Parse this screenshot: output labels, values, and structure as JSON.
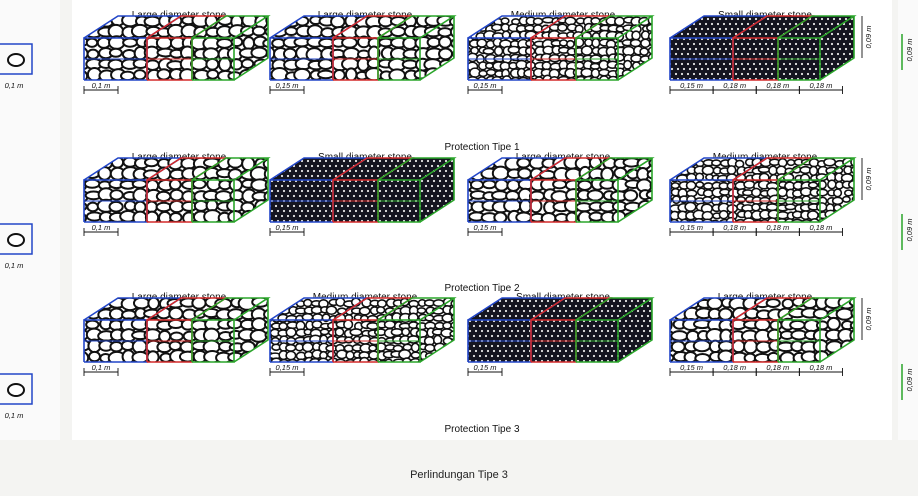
{
  "rows": [
    {
      "title": "Protection Tipe 1",
      "boxes": [
        {
          "label": "Large diameter stone",
          "stone": "large",
          "front_dims": [
            "0,1 m"
          ]
        },
        {
          "label": "Large diameter stone",
          "stone": "large",
          "front_dims": [
            "0,15 m"
          ]
        },
        {
          "label": "Medium diameter stone",
          "stone": "medium",
          "front_dims": [
            "0,15 m"
          ]
        },
        {
          "label": "Small diameter stone",
          "stone": "small",
          "front_dims": [
            "0,15 m",
            "0,18 m",
            "0,18 m",
            "0,18 m"
          ],
          "height_dim": "0,09 m"
        }
      ]
    },
    {
      "title": "Protection Tipe 2",
      "boxes": [
        {
          "label": "Large diameter stone",
          "stone": "large",
          "front_dims": [
            "0,1 m"
          ]
        },
        {
          "label": "Small diameter stone",
          "stone": "small",
          "front_dims": [
            "0,15 m"
          ]
        },
        {
          "label": "Large diameter stone",
          "stone": "large",
          "front_dims": [
            "0,15 m"
          ]
        },
        {
          "label": "Medium diameter stone",
          "stone": "medium",
          "front_dims": [
            "0,15 m",
            "0,18 m",
            "0,18 m",
            "0,18 m"
          ],
          "height_dim": "0,09 m"
        }
      ]
    },
    {
      "title": "Protection Tipe 3",
      "boxes": [
        {
          "label": "Large diameter stone",
          "stone": "large",
          "front_dims": [
            "0,1 m"
          ]
        },
        {
          "label": "Medium diameter stone",
          "stone": "medium",
          "front_dims": [
            "0,15 m"
          ]
        },
        {
          "label": "Small diameter stone",
          "stone": "small",
          "front_dims": [
            "0,15 m"
          ]
        },
        {
          "label": "Large diameter stone",
          "stone": "large",
          "front_dims": [
            "0,15 m",
            "0,18 m",
            "0,18 m",
            "0,18 m"
          ],
          "height_dim": "0,09 m"
        }
      ]
    }
  ],
  "caption": "Perlindungan Tipe 3",
  "colors": {
    "blue": "#2246c8",
    "red": "#d42a2a",
    "green": "#2aa52a",
    "stone_outline": "#111111"
  },
  "edge_labels": {
    "left": "0,1 m",
    "right": "0,09 m"
  }
}
